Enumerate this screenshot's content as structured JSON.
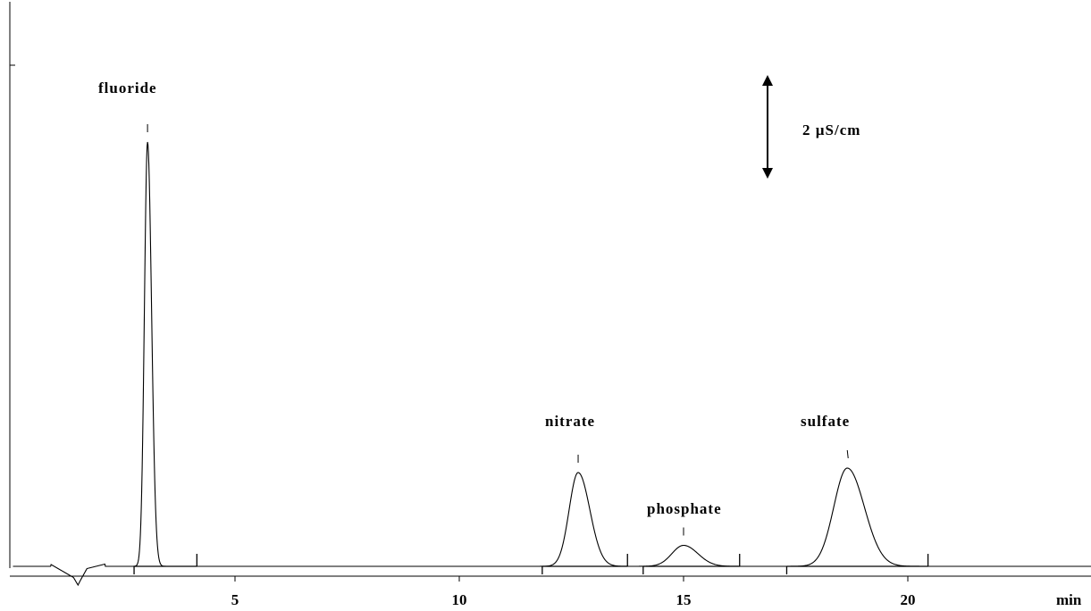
{
  "chart_data": {
    "type": "line",
    "title": "",
    "xlabel": "min",
    "ylabel": "",
    "xlim": [
      0.05,
      24.1
    ],
    "ylim": [
      -1.1,
      11.6
    ],
    "grid": false,
    "x_ticks": [
      5,
      10,
      15,
      20
    ],
    "x_tick_labels": [
      "5",
      "10",
      "15",
      "20"
    ],
    "scale_bar": {
      "label": "2 µS/cm",
      "value": 2,
      "x": 16.9,
      "y_center": 9.6
    },
    "peaks": [
      {
        "name": "fluoride",
        "rt": 3.05,
        "height": 9.5,
        "width_left": 0.07,
        "width_right": 0.09,
        "integration": [
          2.75,
          4.15
        ]
      },
      {
        "name": "nitrate",
        "rt": 12.65,
        "height": 2.1,
        "width_left": 0.2,
        "width_right": 0.26,
        "integration": [
          11.85,
          13.75
        ]
      },
      {
        "name": "phosphate",
        "rt": 15.0,
        "height": 0.47,
        "width_left": 0.26,
        "width_right": 0.32,
        "integration": [
          14.1,
          16.25
        ]
      },
      {
        "name": "sulfate",
        "rt": 18.65,
        "height": 2.2,
        "width_left": 0.3,
        "width_right": 0.38,
        "integration": [
          17.3,
          20.45
        ]
      }
    ],
    "disturbance": [
      {
        "x": 0.9,
        "y": 0.04
      },
      {
        "x": 1.4,
        "y": -0.25
      },
      {
        "x": 1.5,
        "y": -0.42
      },
      {
        "x": 1.55,
        "y": -0.32
      },
      {
        "x": 1.7,
        "y": -0.05
      },
      {
        "x": 2.1,
        "y": 0.05
      }
    ]
  },
  "labels": {
    "fluoride": "fluoride",
    "nitrate": "nitrate",
    "phosphate": "phosphate",
    "sulfate": "sulfate",
    "scale": "2 µS/cm",
    "xunit": "min"
  }
}
